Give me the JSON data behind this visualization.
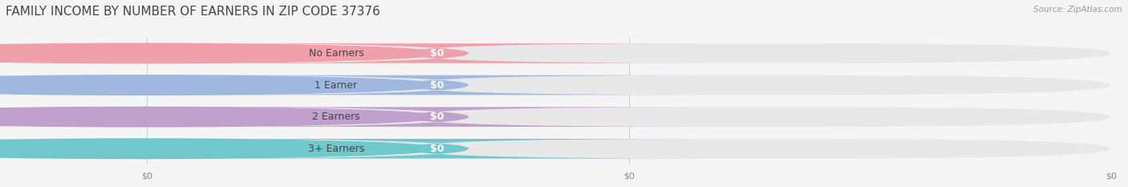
{
  "title": "FAMILY INCOME BY NUMBER OF EARNERS IN ZIP CODE 37376",
  "source": "Source: ZipAtlas.com",
  "categories": [
    "No Earners",
    "1 Earner",
    "2 Earners",
    "3+ Earners"
  ],
  "values": [
    0,
    0,
    0,
    0
  ],
  "bar_colors": [
    "#f0a0aa",
    "#a0b8e0",
    "#c0a0cc",
    "#70c8cc"
  ],
  "background_color": "#f5f5f5",
  "bar_bg_color": "#e8e8e8",
  "title_fontsize": 11,
  "label_fontsize": 9,
  "value_fontsize": 9,
  "tick_fontsize": 8,
  "source_fontsize": 7.5
}
